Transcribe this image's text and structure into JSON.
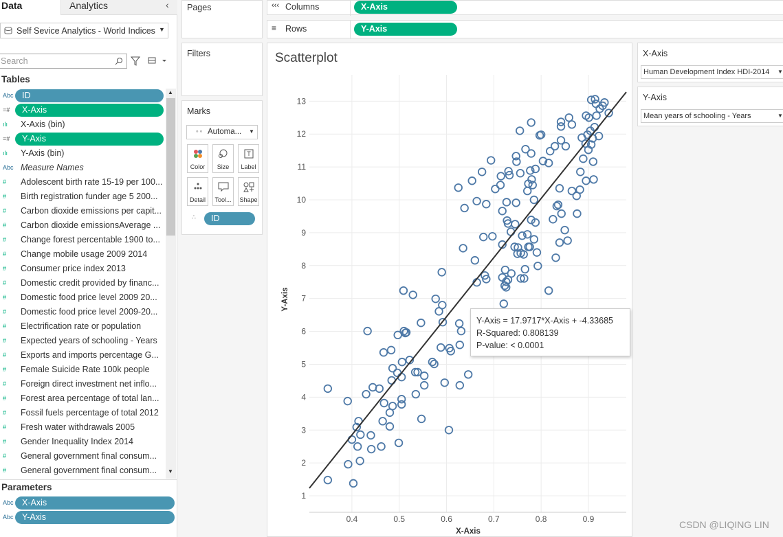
{
  "sidebar": {
    "tabs": [
      "Data",
      "Analytics"
    ],
    "datasource": "Self Sevice Analytics - World Indices",
    "search_placeholder": "Search",
    "tables_heading": "Tables",
    "fields": [
      {
        "icon": "Abc",
        "name": "ID",
        "pill": "#4996b2"
      },
      {
        "icon": "=#",
        "name": "X-Axis",
        "pill": "#00b180"
      },
      {
        "icon": "ılı",
        "name": "X-Axis (bin)"
      },
      {
        "icon": "=#",
        "name": "Y-Axis",
        "pill": "#00b180"
      },
      {
        "icon": "ılı",
        "name": "Y-Axis (bin)"
      },
      {
        "icon": "Abc",
        "name": "Measure Names",
        "italic": true
      },
      {
        "icon": "#",
        "name": "Adolescent birth rate 15-19 per 100..."
      },
      {
        "icon": "#",
        "name": "Birth registration funder age 5 200..."
      },
      {
        "icon": "#",
        "name": "Carbon dioxide emissions per capit..."
      },
      {
        "icon": "#",
        "name": "Carbon dioxide emissionsAverage ..."
      },
      {
        "icon": "#",
        "name": "Change forest percentable 1900 to..."
      },
      {
        "icon": "#",
        "name": "Change mobile usage 2009 2014"
      },
      {
        "icon": "#",
        "name": "Consumer price index 2013"
      },
      {
        "icon": "#",
        "name": "Domestic credit provided by financ..."
      },
      {
        "icon": "#",
        "name": "Domestic food price level 2009 20..."
      },
      {
        "icon": "#",
        "name": "Domestic food price level 2009-20..."
      },
      {
        "icon": "#",
        "name": "Electrification rate or population"
      },
      {
        "icon": "#",
        "name": "Expected years of schooling - Years"
      },
      {
        "icon": "#",
        "name": "Exports and imports percentage G..."
      },
      {
        "icon": "#",
        "name": "Female Suicide Rate 100k people"
      },
      {
        "icon": "#",
        "name": "Foreign direct investment net inflo..."
      },
      {
        "icon": "#",
        "name": "Forest area percentage of total lan..."
      },
      {
        "icon": "#",
        "name": "Fossil fuels percentage of total 2012"
      },
      {
        "icon": "#",
        "name": "Fresh water withdrawals 2005"
      },
      {
        "icon": "#",
        "name": "Gender Inequality Index 2014"
      },
      {
        "icon": "#",
        "name": "General government final consum..."
      },
      {
        "icon": "#",
        "name": "General government final consum..."
      }
    ],
    "parameters_heading": "Parameters",
    "parameters": [
      {
        "icon": "Abc",
        "name": "X-Axis"
      },
      {
        "icon": "Abc",
        "name": "Y-Axis"
      }
    ]
  },
  "cards": {
    "pages": "Pages",
    "filters": "Filters",
    "marks": "Marks",
    "mark_type": "Automa...",
    "mark_buttons": [
      "Color",
      "Size",
      "Label",
      "Detail",
      "Tool...",
      "Shape"
    ],
    "detail_pill": "ID"
  },
  "shelves": {
    "columns_label": "Columns",
    "columns_pill": "X-Axis",
    "rows_label": "Rows",
    "rows_pill": "Y-Axis"
  },
  "parameter_cards": [
    {
      "title": "X-Axis",
      "value": "Human Development Index HDI-2014"
    },
    {
      "title": "Y-Axis",
      "value": "Mean years of schooling - Years"
    }
  ],
  "tooltip": [
    "Y-Axis = 17.9717*X-Axis + -4.33685",
    "R-Squared: 0.808139",
    "P-value: < 0.0001"
  ],
  "watermark": "CSDN @LIQING LIN",
  "chart_data": {
    "type": "scatter",
    "title": "Scatterplot",
    "x_label": "X-Axis",
    "y_label": "Y-Axis",
    "color": "#4e79a7",
    "grid": true,
    "xlim": [
      0.31,
      0.98
    ],
    "ylim": [
      0.5,
      13.8
    ],
    "xticks": [
      0.4,
      0.5,
      0.6,
      0.7,
      0.8,
      0.9
    ],
    "yticks": [
      1,
      2,
      3,
      4,
      5,
      6,
      7,
      8,
      9,
      10,
      11,
      12,
      13
    ],
    "trend": {
      "slope": 17.9717,
      "intercept": -4.33685,
      "color": "#333333"
    },
    "x": [
      0.349,
      0.349,
      0.391,
      0.392,
      0.403,
      0.4,
      0.41,
      0.414,
      0.412,
      0.418,
      0.417,
      0.43,
      0.433,
      0.44,
      0.441,
      0.444,
      0.458,
      0.462,
      0.465,
      0.467,
      0.468,
      0.48,
      0.48,
      0.483,
      0.484,
      0.486,
      0.486,
      0.496,
      0.499,
      0.497,
      0.505,
      0.505,
      0.505,
      0.506,
      0.509,
      0.51,
      0.513,
      0.515,
      0.522,
      0.529,
      0.534,
      0.535,
      0.539,
      0.546,
      0.547,
      0.553,
      0.553,
      0.57,
      0.574,
      0.577,
      0.584,
      0.588,
      0.59,
      0.591,
      0.592,
      0.596,
      0.605,
      0.606,
      0.609,
      0.627,
      0.628,
      0.628,
      0.625,
      0.631,
      0.638,
      0.635,
      0.646,
      0.654,
      0.66,
      0.664,
      0.664,
      0.675,
      0.678,
      0.681,
      0.684,
      0.684,
      0.694,
      0.697,
      0.703,
      0.714,
      0.715,
      0.718,
      0.718,
      0.718,
      0.721,
      0.723,
      0.724,
      0.726,
      0.726,
      0.727,
      0.728,
      0.73,
      0.73,
      0.731,
      0.733,
      0.736,
      0.737,
      0.744,
      0.745,
      0.747,
      0.747,
      0.748,
      0.75,
      0.751,
      0.755,
      0.756,
      0.757,
      0.757,
      0.76,
      0.763,
      0.764,
      0.766,
      0.767,
      0.771,
      0.771,
      0.773,
      0.773,
      0.776,
      0.777,
      0.779,
      0.779,
      0.779,
      0.78,
      0.782,
      0.785,
      0.785,
      0.788,
      0.788,
      0.791,
      0.793,
      0.797,
      0.8,
      0.804,
      0.816,
      0.816,
      0.819,
      0.825,
      0.829,
      0.831,
      0.833,
      0.836,
      0.839,
      0.839,
      0.842,
      0.842,
      0.842,
      0.843,
      0.85,
      0.852,
      0.856,
      0.859,
      0.865,
      0.865,
      0.875,
      0.876,
      0.882,
      0.883,
      0.886,
      0.889,
      0.894,
      0.895,
      0.895,
      0.898,
      0.9,
      0.901,
      0.904,
      0.906,
      0.906,
      0.909,
      0.91,
      0.911,
      0.913,
      0.914,
      0.916,
      0.917,
      0.922,
      0.924,
      0.93,
      0.934,
      0.943
    ],
    "values": [
      4.26,
      1.48,
      3.88,
      1.96,
      1.38,
      2.71,
      3.09,
      3.27,
      2.5,
      2.86,
      2.06,
      4.09,
      6.01,
      2.84,
      2.42,
      4.3,
      4.26,
      2.5,
      3.27,
      5.36,
      3.82,
      3.53,
      3.11,
      5.43,
      4.51,
      3.73,
      4.88,
      4.74,
      2.61,
      5.89,
      3.94,
      3.78,
      4.61,
      5.07,
      7.24,
      6.01,
      5.95,
      5.97,
      5.13,
      7.11,
      4.76,
      4.09,
      4.76,
      6.26,
      3.34,
      4.65,
      4.36,
      5.07,
      5.01,
      6.99,
      6.61,
      5.51,
      7.8,
      6.8,
      6.28,
      4.44,
      3.0,
      5.49,
      5.4,
      6.24,
      4.36,
      5.59,
      10.37,
      6.01,
      9.75,
      8.53,
      4.69,
      10.58,
      8.16,
      9.96,
      7.49,
      10.85,
      8.87,
      7.7,
      7.59,
      9.87,
      11.2,
      8.89,
      10.33,
      10.45,
      10.72,
      9.66,
      8.64,
      7.64,
      6.84,
      7.39,
      7.87,
      7.51,
      7.34,
      9.93,
      9.37,
      9.28,
      7.57,
      10.87,
      10.75,
      9.03,
      7.76,
      8.57,
      9.26,
      11.33,
      9.91,
      11.16,
      8.36,
      8.55,
      12.1,
      10.81,
      8.38,
      7.61,
      8.91,
      8.34,
      7.61,
      7.89,
      11.54,
      8.95,
      10.27,
      10.49,
      8.57,
      8.57,
      10.89,
      11.41,
      9.39,
      12.35,
      10.62,
      10.45,
      10.0,
      8.8,
      10.94,
      9.31,
      8.4,
      7.99,
      11.96,
      11.98,
      11.18,
      11.12,
      7.24,
      11.48,
      9.41,
      11.63,
      8.24,
      9.81,
      9.85,
      8.7,
      10.35,
      12.37,
      12.23,
      11.81,
      9.58,
      9.08,
      11.63,
      8.76,
      12.5,
      12.29,
      10.27,
      10.12,
      9.58,
      10.31,
      10.85,
      11.89,
      11.25,
      11.71,
      12.56,
      10.58,
      11.98,
      11.52,
      12.5,
      12.1,
      11.68,
      13.04,
      11.87,
      11.16,
      10.62,
      12.21,
      13.06,
      12.92,
      12.56,
      11.94,
      12.77,
      12.86,
      12.96,
      12.64
    ]
  }
}
